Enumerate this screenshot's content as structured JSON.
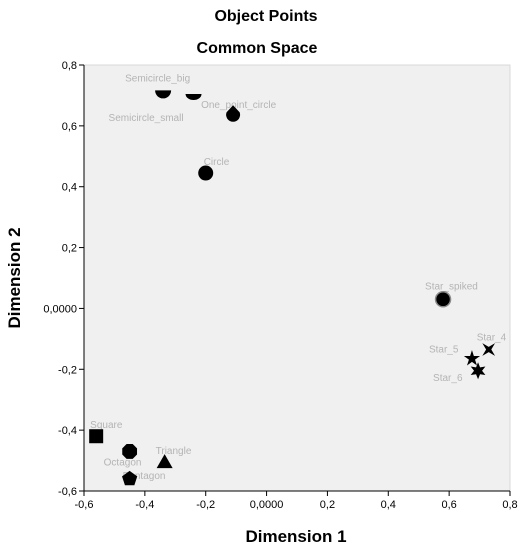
{
  "chart_data": {
    "type": "scatter",
    "title": "Object Points",
    "subtitle": "Common Space",
    "xlabel": "Dimension 1",
    "ylabel": "Dimension 2",
    "xlim": [
      -0.6,
      0.8
    ],
    "ylim": [
      -0.6,
      0.8
    ],
    "x_ticks": [
      -0.6,
      -0.4,
      -0.2,
      0.0,
      0.2,
      0.4,
      0.6,
      0.8
    ],
    "x_tick_labels": [
      "-0,6",
      "-0,4",
      "-0,2",
      "0,0000",
      "0,2",
      "0,4",
      "0,6",
      "0,8"
    ],
    "y_ticks": [
      0.8,
      0.6,
      0.4,
      0.2,
      0.0,
      -0.2,
      -0.4,
      -0.6
    ],
    "y_tick_labels": [
      "0,8",
      "0,6",
      "0,4",
      "0,2",
      "0,0000",
      "-0,2",
      "-0,4",
      "-0,6"
    ],
    "grid": false,
    "colors": {
      "plot_background": "#f0f0f0",
      "marker": "#000000",
      "point_label": "#b4b4b4"
    },
    "points": [
      {
        "label": "Semicircle_big",
        "x": -0.34,
        "y": 0.7,
        "marker": "semicircle-big"
      },
      {
        "label": "Semicircle_small",
        "x": -0.24,
        "y": 0.695,
        "marker": "semicircle-small"
      },
      {
        "label": "One_point_circle",
        "x": -0.11,
        "y": 0.635,
        "marker": "one-point-circle"
      },
      {
        "label": "Circle",
        "x": -0.2,
        "y": 0.445,
        "marker": "circle"
      },
      {
        "label": "Star_spiked",
        "x": 0.58,
        "y": 0.03,
        "marker": "circle-gray"
      },
      {
        "label": "Star_4",
        "x": 0.73,
        "y": -0.135,
        "marker": "star-4"
      },
      {
        "label": "Star_5",
        "x": 0.675,
        "y": -0.165,
        "marker": "star-5"
      },
      {
        "label": "Star_6",
        "x": 0.695,
        "y": -0.205,
        "marker": "star-6"
      },
      {
        "label": "Square",
        "x": -0.56,
        "y": -0.42,
        "marker": "square"
      },
      {
        "label": "Octagon",
        "x": -0.45,
        "y": -0.47,
        "marker": "octagon"
      },
      {
        "label": "Triangle",
        "x": -0.335,
        "y": -0.505,
        "marker": "triangle"
      },
      {
        "label": "Pentagon",
        "x": -0.45,
        "y": -0.56,
        "marker": "pentagon"
      }
    ]
  }
}
